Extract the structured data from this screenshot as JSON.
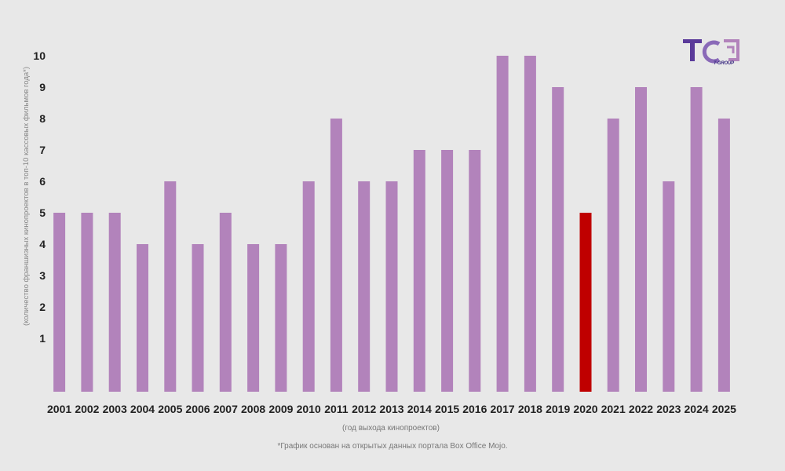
{
  "chart_data": {
    "type": "bar",
    "title": "",
    "categories": [
      "2001",
      "2002",
      "2003",
      "2004",
      "2005",
      "2006",
      "2007",
      "2008",
      "2009",
      "2010",
      "2011",
      "2012",
      "2013",
      "2014",
      "2015",
      "2016",
      "2017",
      "2018",
      "2019",
      "2020",
      "2021",
      "2022",
      "2023",
      "2024",
      "2025"
    ],
    "values": [
      5,
      5,
      5,
      4,
      6,
      4,
      5,
      4,
      4,
      6,
      8,
      6,
      6,
      7,
      7,
      7,
      10,
      10,
      9,
      5,
      8,
      9,
      6,
      9,
      8
    ],
    "highlight": [
      "2020"
    ],
    "yticks": [
      1,
      2,
      3,
      4,
      5,
      6,
      7,
      8,
      9,
      10
    ],
    "ylim": [
      0,
      10.7
    ],
    "ylabel": "(количество франшизных кинопроектов в топ-10 кассовых фильмов года*)",
    "xlabel": "(год выхода кинопроектов)",
    "grid": false,
    "legend": "none",
    "colors": {
      "bar": "#b283bb",
      "highlight": "#bf0000",
      "background": "#e8e8e8"
    }
  },
  "footnote": "*График основан на открытых данных портала Box Office Mojo.",
  "logo": {
    "letters": "TG",
    "sub": "T-GROUP",
    "colors": {
      "primary": "#5a3a9a",
      "secondary": "#b283bb"
    }
  }
}
